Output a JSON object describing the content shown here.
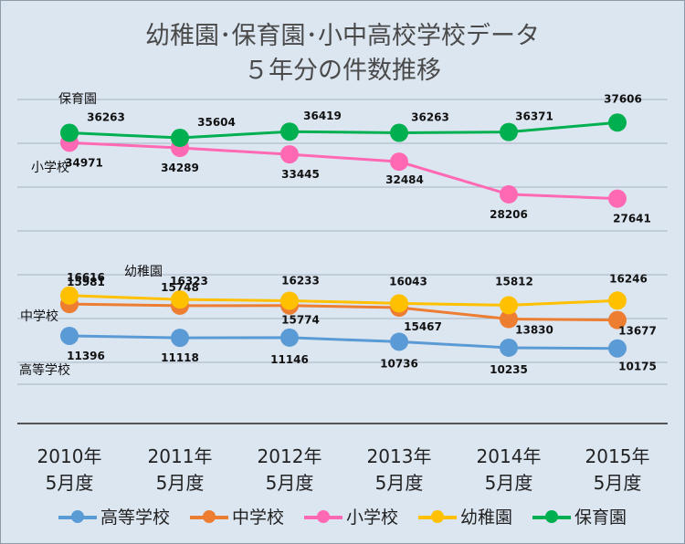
{
  "title_line1": "幼稚園･保育園･小中高校学校データ",
  "title_line2": "５年分の件数推移",
  "chart_data": {
    "type": "line",
    "categories": [
      "2010年\n5月度",
      "2011年\n5月度",
      "2012年\n5月度",
      "2013年\n5月度",
      "2014年\n5月度",
      "2015年\n5月度"
    ],
    "category_lines": [
      [
        "2010年",
        "5月度"
      ],
      [
        "2011年",
        "5月度"
      ],
      [
        "2012年",
        "5月度"
      ],
      [
        "2013年",
        "5月度"
      ],
      [
        "2014年",
        "5月度"
      ],
      [
        "2015年",
        "5月度"
      ]
    ],
    "grid": true,
    "legend_position": "bottom",
    "series": [
      {
        "name": "高等学校",
        "color": "#5b9bd5",
        "values": [
          11396,
          11118,
          11146,
          10736,
          10235,
          10175
        ],
        "tag": "高等学校"
      },
      {
        "name": "中学校",
        "color": "#ed7d31",
        "values": [
          15981,
          15748,
          15774,
          15467,
          13830,
          13677
        ],
        "tag": "中学校"
      },
      {
        "name": "小学校",
        "color": "#ff69b4",
        "values": [
          34971,
          34289,
          33445,
          32484,
          28206,
          27641
        ],
        "tag": "小学校"
      },
      {
        "name": "幼稚園",
        "color": "#ffc000",
        "values": [
          16616,
          16323,
          16233,
          16043,
          15812,
          16246
        ],
        "tag": "幼稚園"
      },
      {
        "name": "保育園",
        "color": "#00b050",
        "values": [
          36263,
          35604,
          36419,
          36263,
          36371,
          37606
        ],
        "tag": "保育園"
      }
    ]
  }
}
